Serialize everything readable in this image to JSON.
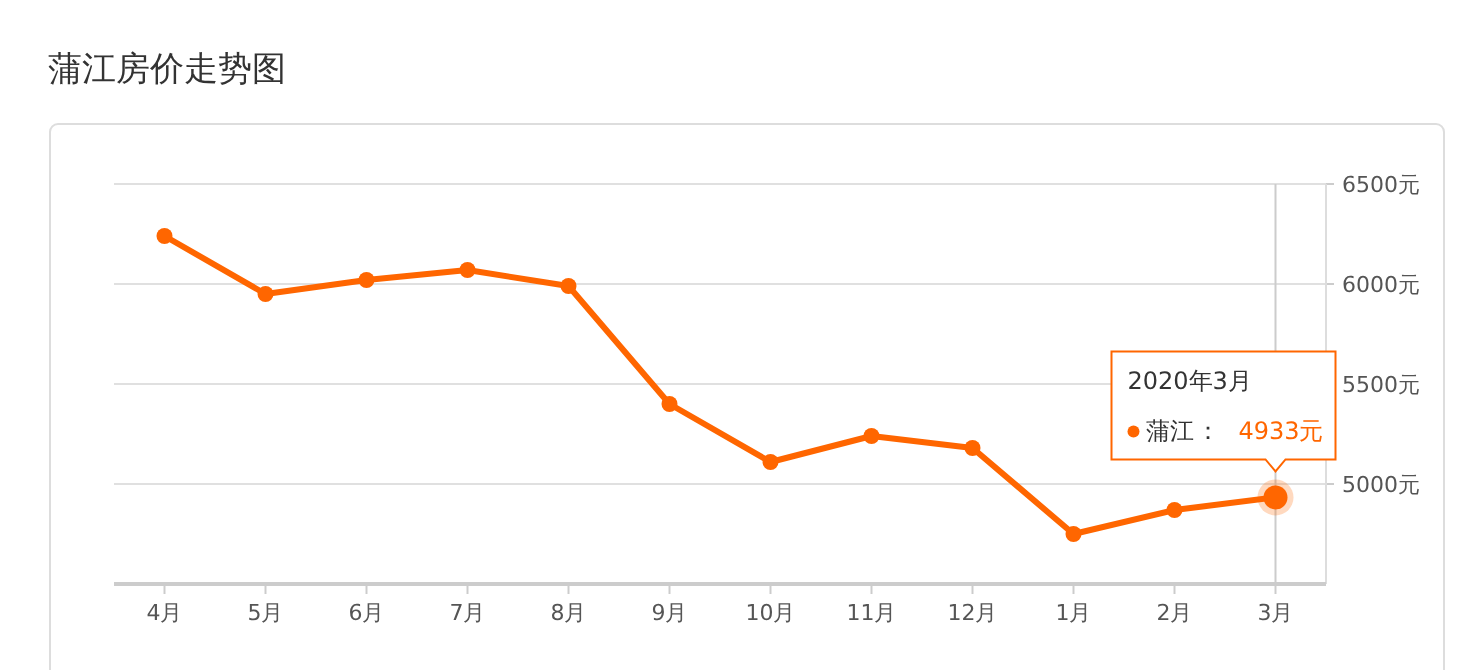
{
  "chart_data": {
    "type": "line",
    "title": "蒲江房价走势图",
    "categories": [
      "4月",
      "5月",
      "6月",
      "7月",
      "8月",
      "9月",
      "10月",
      "11月",
      "12月",
      "1月",
      "2月",
      "3月"
    ],
    "series": [
      {
        "name": "蒲江",
        "color": "#ff6600",
        "values": [
          6240,
          5950,
          6020,
          6070,
          5990,
          5400,
          5110,
          5240,
          5180,
          4750,
          4870,
          4933
        ],
        "value_labels": [
          null,
          null,
          null,
          null,
          null,
          null,
          null,
          null,
          null,
          null,
          null,
          "4933元"
        ]
      }
    ],
    "ylim": [
      4500,
      6500
    ],
    "yticks": [
      {
        "value": 5000,
        "label": "5000元"
      },
      {
        "value": 5500,
        "label": "5500元"
      },
      {
        "value": 6000,
        "label": "6000元"
      },
      {
        "value": 6500,
        "label": "6500元"
      }
    ],
    "grid": "y",
    "marker": "circle",
    "line_style": "solid",
    "ref_lines": [
      {
        "axis": "x",
        "value": "3月",
        "color": "#cccccc"
      }
    ],
    "annotations": [
      "2020年3月",
      "："
    ]
  }
}
